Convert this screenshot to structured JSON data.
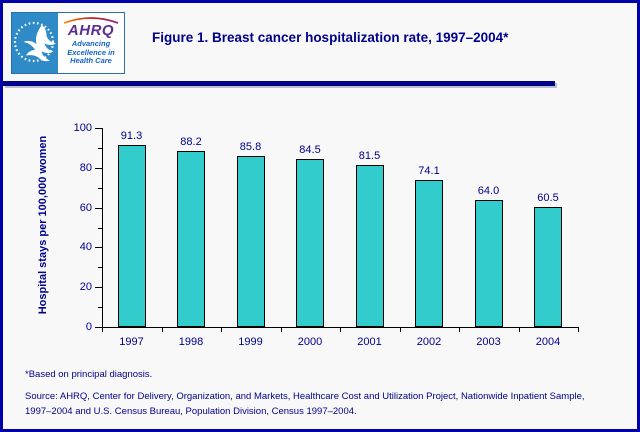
{
  "page": {
    "background": "#F8F8F8",
    "border_color": "#0000A8",
    "accent_color": "#00008B"
  },
  "header": {
    "logo": {
      "hhs_emblem": "hhs-eagle-seal",
      "ahrq_acronym": "AHRQ",
      "tagline_lines": [
        "Advancing",
        "Excellence in",
        "Health Care"
      ]
    },
    "title": "Figure 1. Breast cancer hospitalization rate, 1997–2004*"
  },
  "chart_data": {
    "type": "bar",
    "categories": [
      "1997",
      "1998",
      "1999",
      "2000",
      "2001",
      "2002",
      "2003",
      "2004"
    ],
    "values": [
      91.3,
      88.2,
      85.8,
      84.5,
      81.5,
      74.1,
      64.0,
      60.5
    ],
    "value_labels": [
      "91.3",
      "88.2",
      "85.8",
      "84.5",
      "81.5",
      "74.1",
      "64.0",
      "60.5"
    ],
    "title": "",
    "xlabel": "",
    "ylabel": "Hospital stays per 100,000 women",
    "ylim": [
      0,
      100
    ],
    "yticks": [
      0,
      20,
      40,
      60,
      80,
      100
    ],
    "minor_tick_step": 10,
    "grid": false,
    "legend_position": "none",
    "bar_color": "#33CCCC",
    "bar_border_color": "#000000",
    "axis_color": "#000000",
    "label_color": "#00008B"
  },
  "footnotes": {
    "note": "*Based on principal diagnosis.",
    "source": "Source: AHRQ, Center for Delivery, Organization, and Markets, Healthcare Cost and Utilization Project, Nationwide Inpatient Sample, 1997–2004 and U.S. Census Bureau, Population Division, Census 1997–2004."
  }
}
